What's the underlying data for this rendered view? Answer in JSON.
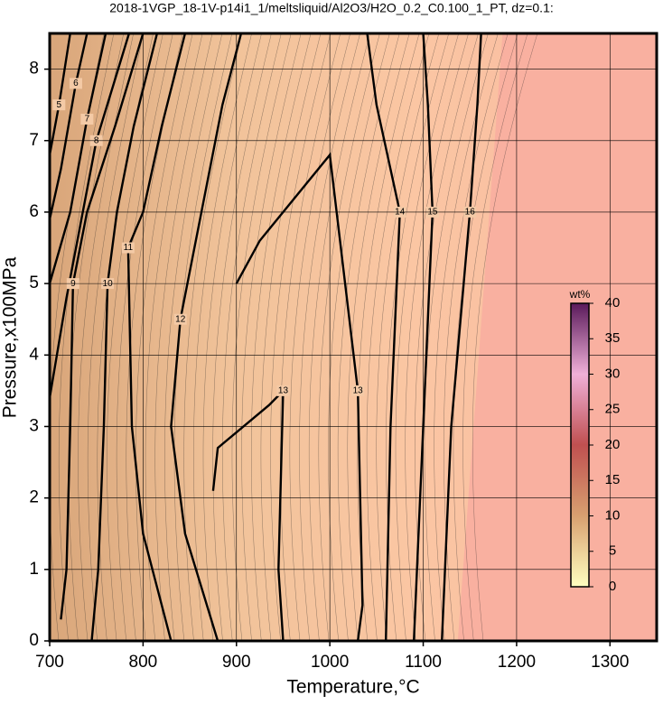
{
  "chart_data": {
    "type": "contour",
    "title": "2018-1VGP_18-1V-p14i1_1/meltsliquid/Al2O3/H2O_0.2_C0.100_1_PT, dz=0.1:",
    "xlabel": "Temperature,°C",
    "ylabel": "Pressure,x100MPa",
    "xlim": [
      700,
      1350
    ],
    "ylim": [
      0,
      8.5
    ],
    "xticks": [
      700,
      800,
      900,
      1000,
      1100,
      1200,
      1300
    ],
    "yticks": [
      0,
      1,
      2,
      3,
      4,
      5,
      6,
      7,
      8
    ],
    "grid": true,
    "colorbar": {
      "label": "wt%",
      "lim": [
        0,
        40
      ],
      "ticks": [
        0,
        5,
        10,
        15,
        20,
        25,
        30,
        35,
        40
      ]
    },
    "contours": [
      {
        "level": 5,
        "x": [
          700,
          710,
          722
        ],
        "y": [
          6.8,
          7.5,
          8.5
        ]
      },
      {
        "level": 6,
        "x": [
          700,
          712,
          728,
          740
        ],
        "y": [
          5.9,
          6.6,
          7.8,
          8.5
        ]
      },
      {
        "level": 7,
        "x": [
          700,
          722,
          740,
          760
        ],
        "y": [
          5.0,
          6.0,
          7.3,
          8.5
        ]
      },
      {
        "level": 8,
        "x": [
          700,
          718,
          750,
          785
        ],
        "y": [
          3.4,
          4.8,
          7.0,
          8.5
        ]
      },
      {
        "level": 9,
        "x": [
          712,
          718,
          722,
          725,
          740,
          770,
          800
        ],
        "y": [
          0.3,
          1,
          3,
          5,
          6,
          7.2,
          8.5
        ]
      },
      {
        "level": 10,
        "x": [
          745,
          752,
          758,
          762,
          772,
          790,
          815
        ],
        "y": [
          0,
          1,
          3,
          5,
          6,
          7.2,
          8.5
        ]
      },
      {
        "level": 11,
        "x": [
          830,
          800,
          788,
          784,
          800,
          820,
          845
        ],
        "y": [
          0,
          1.5,
          3,
          5.5,
          6,
          7.2,
          8.5
        ]
      },
      {
        "level": 12,
        "x": [
          880,
          845,
          830,
          840,
          870,
          885,
          905
        ],
        "y": [
          0,
          1.5,
          3,
          4.5,
          6.5,
          7.5,
          8.5
        ]
      },
      {
        "level": 13,
        "x": [
          875,
          880,
          935,
          950,
          945,
          950
        ],
        "y": [
          2.1,
          2.7,
          3.3,
          3.5,
          1.0,
          0
        ]
      },
      {
        "level": 13,
        "x": [
          900,
          925,
          1000,
          1030,
          1035,
          1030
        ],
        "y": [
          5.0,
          5.6,
          6.8,
          3.5,
          0.5,
          0
        ]
      },
      {
        "level": 14,
        "x": [
          1060,
          1065,
          1075,
          1050,
          1040
        ],
        "y": [
          0,
          3,
          6,
          7.5,
          8.5
        ]
      },
      {
        "level": 15,
        "x": [
          1090,
          1100,
          1110,
          1105,
          1100
        ],
        "y": [
          0,
          3,
          6,
          7.5,
          8.5
        ]
      },
      {
        "level": 16,
        "x": [
          1120,
          1130,
          1150,
          1158,
          1162
        ],
        "y": [
          0,
          3,
          6,
          7.5,
          8.5
        ]
      }
    ]
  }
}
